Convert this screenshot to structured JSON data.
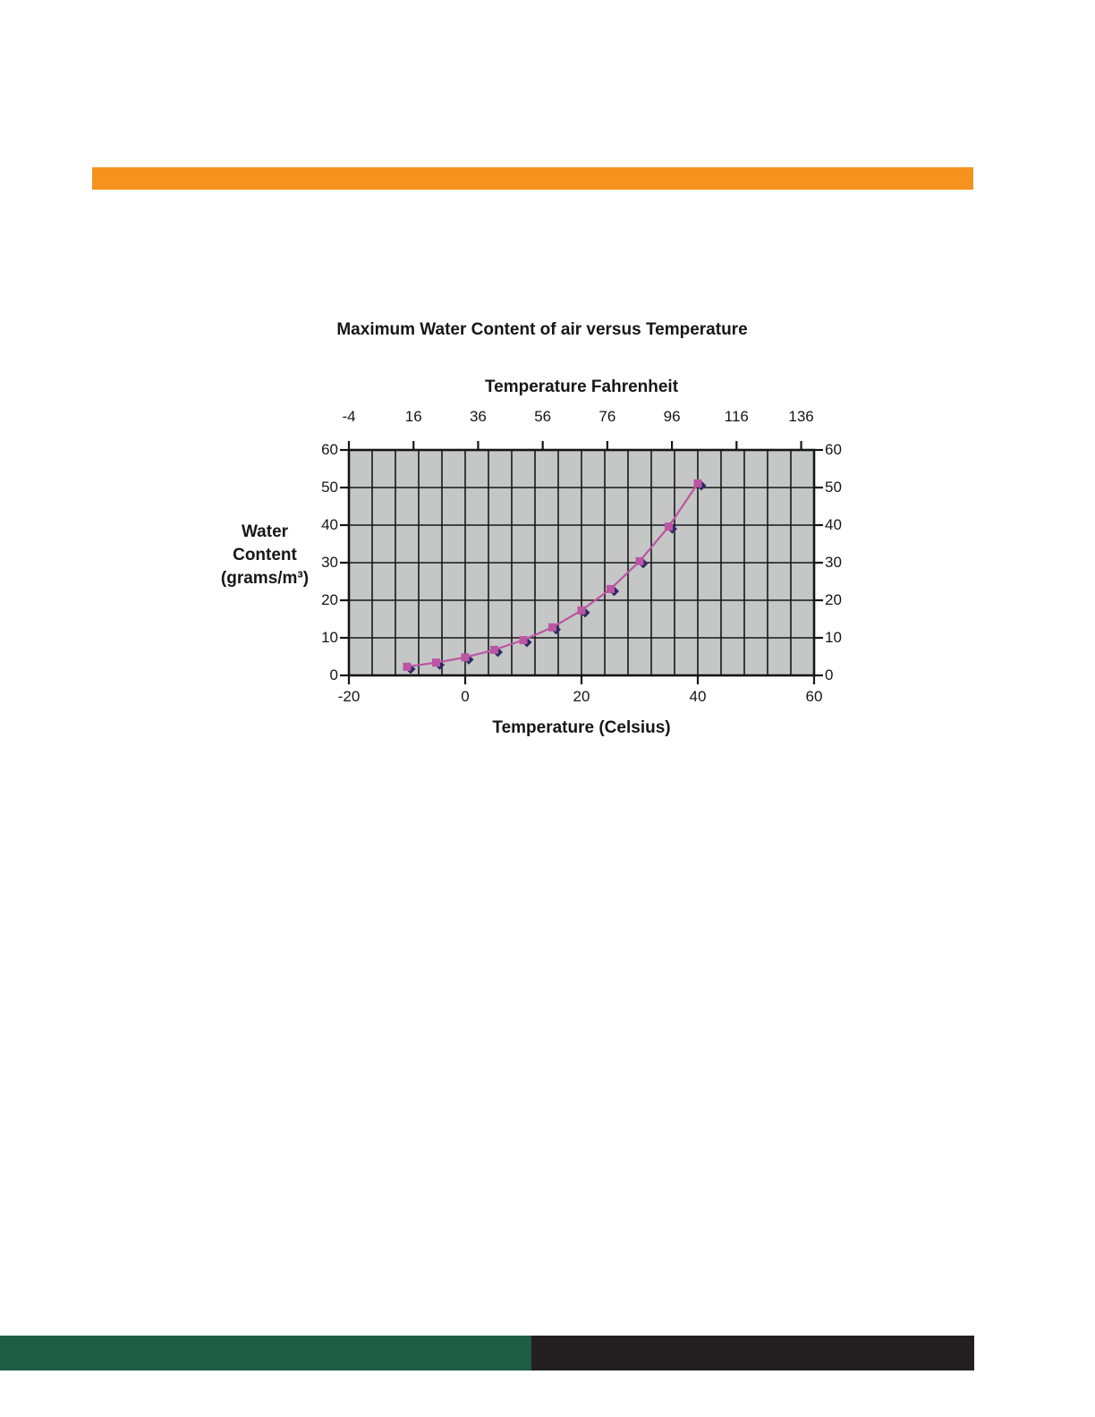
{
  "page": {
    "background_color": "#FFFFFF",
    "top_accent_bar_color": "#F6931E",
    "footer_left_bar_color": "#1E5C45",
    "footer_right_bar_color": "#242021"
  },
  "chart_data": {
    "type": "line",
    "title": "Maximum Water Content of air versus Temperature",
    "x_top_axis": {
      "label": "Temperature Fahrenheit",
      "tick_labels": [
        "-4",
        "16",
        "36",
        "56",
        "76",
        "96",
        "116",
        "136"
      ],
      "tick_values_f": [
        -4,
        16,
        36,
        56,
        76,
        96,
        116,
        136
      ]
    },
    "x_bottom_axis": {
      "label": "Temperature (Celsius)",
      "tick_labels": [
        "-20",
        "0",
        "20",
        "40",
        "60"
      ],
      "tick_values_c": [
        -20,
        0,
        20,
        40,
        60
      ],
      "range_c": [
        -20,
        60
      ]
    },
    "y_axis": {
      "label_lines": [
        "Water",
        "Content",
        "(grams/m³)"
      ],
      "tick_labels": [
        "0",
        "10",
        "20",
        "30",
        "40",
        "50",
        "60"
      ],
      "tick_values": [
        0,
        10,
        20,
        30,
        40,
        50,
        60
      ],
      "range": [
        0,
        60
      ],
      "labels_on_both_sides": true
    },
    "grid": {
      "x_step_celsius": 4,
      "y_step": 10,
      "grid_color": "#161616",
      "plot_background": "#C4C7C5"
    },
    "series": [
      {
        "name": "maximum-water-content",
        "x_celsius": [
          -10,
          -5,
          0,
          5,
          10,
          15,
          20,
          25,
          30,
          35,
          40
        ],
        "values": [
          2.3,
          3.4,
          4.8,
          6.8,
          9.4,
          12.8,
          17.3,
          23.0,
          30.4,
          39.6,
          51.1
        ],
        "line_color": "#BC55A4",
        "marker_shape": "square",
        "marker_color": "#BC55A4",
        "marker_shadow_shape": "diamond",
        "marker_shadow_color": "#2E2A65"
      }
    ],
    "legend": "none"
  }
}
